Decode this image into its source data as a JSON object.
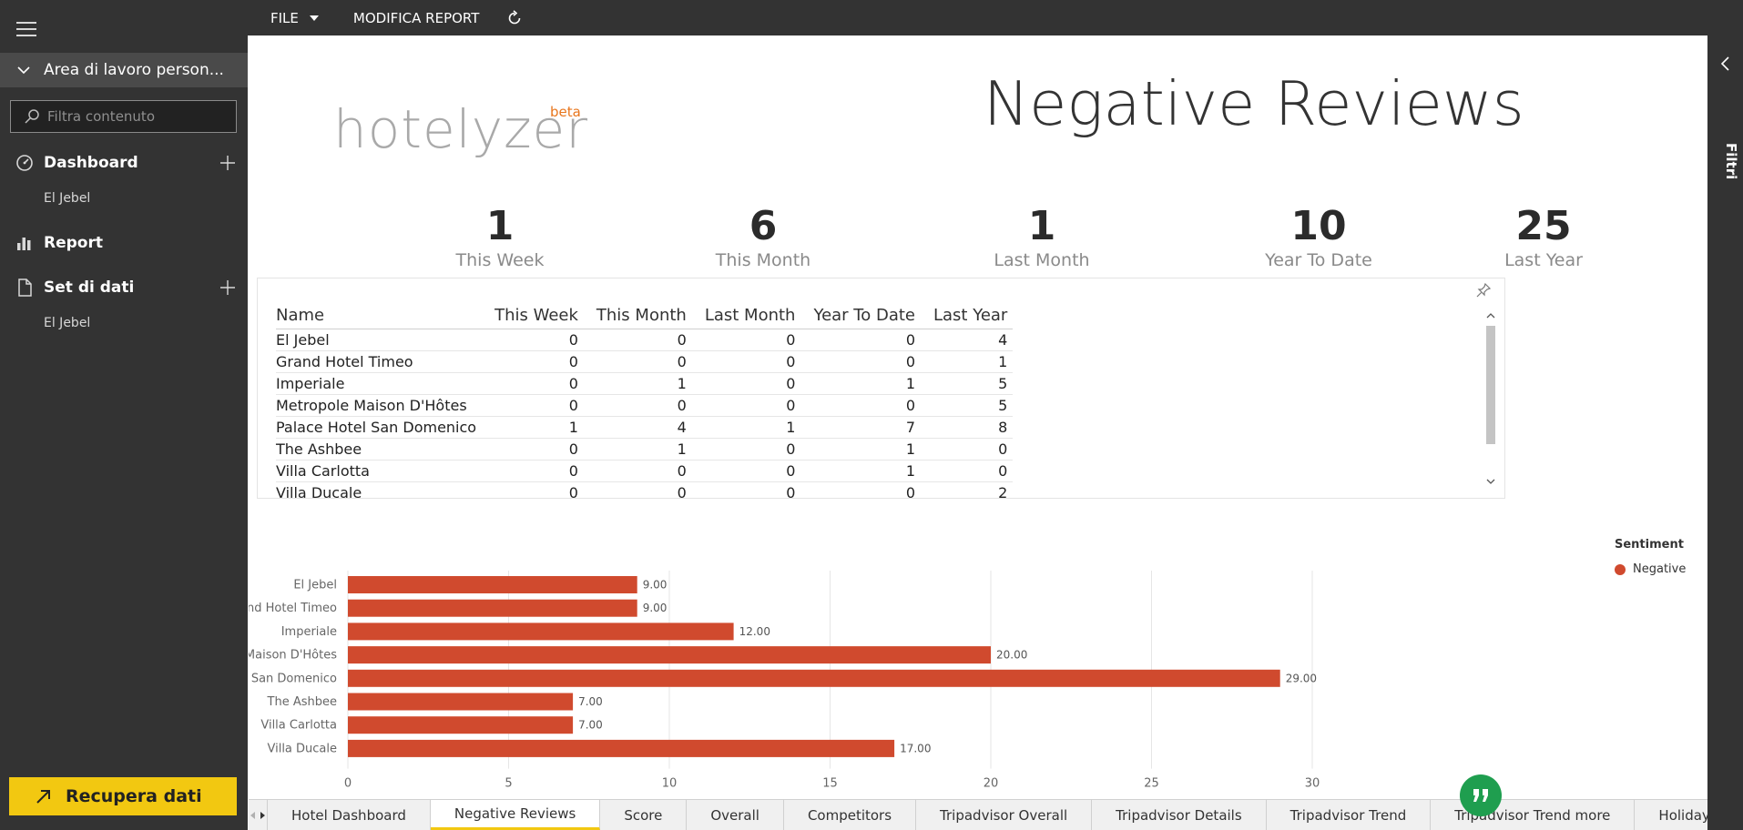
{
  "nav": {
    "workspace_label": "Area di lavoro person...",
    "filter_placeholder": "Filtra contenuto",
    "sections": [
      {
        "label": "Dashboard",
        "sub": "El Jebel"
      },
      {
        "label": "Report"
      },
      {
        "label": "Set di dati",
        "sub": "El Jebel"
      }
    ],
    "get_data_label": "Recupera dati"
  },
  "toolbar": {
    "file_label": "FILE",
    "edit_label": "MODIFICA REPORT"
  },
  "filters_pane": {
    "label": "Filtri"
  },
  "report": {
    "logo_text": "hotelyzer",
    "logo_beta": "beta",
    "title": "Negative Reviews",
    "kpis": [
      {
        "value": "1",
        "label": "This Week"
      },
      {
        "value": "6",
        "label": "This Month"
      },
      {
        "value": "1",
        "label": "Last Month"
      },
      {
        "value": "10",
        "label": "Year To Date"
      },
      {
        "value": "25",
        "label": "Last Year"
      }
    ],
    "table": {
      "headers": [
        "Name",
        "This Week",
        "This Month",
        "Last Month",
        "Year To Date",
        "Last Year"
      ],
      "rows": [
        [
          "El Jebel",
          "0",
          "0",
          "0",
          "0",
          "4"
        ],
        [
          "Grand Hotel Timeo",
          "0",
          "0",
          "0",
          "0",
          "1"
        ],
        [
          "Imperiale",
          "0",
          "1",
          "0",
          "1",
          "5"
        ],
        [
          "Metropole Maison D'Hôtes",
          "0",
          "0",
          "0",
          "0",
          "5"
        ],
        [
          "Palace Hotel San Domenico",
          "1",
          "4",
          "1",
          "7",
          "8"
        ],
        [
          "The Ashbee",
          "0",
          "1",
          "0",
          "1",
          "0"
        ],
        [
          "Villa Carlotta",
          "0",
          "0",
          "0",
          "1",
          "0"
        ],
        [
          "Villa Ducale",
          "0",
          "0",
          "0",
          "0",
          "2"
        ]
      ]
    }
  },
  "chart_data": {
    "type": "bar",
    "orientation": "horizontal",
    "categories": [
      "El Jebel",
      "Grand Hotel Timeo",
      "Imperiale",
      "Metropole Maison D'Hôtes",
      "Palace Hotel San Domenico",
      "The Ashbee",
      "Villa Carlotta",
      "Villa Ducale"
    ],
    "series": [
      {
        "name": "Negative",
        "values": [
          9,
          9,
          12,
          20,
          29,
          7,
          7,
          17
        ],
        "color": "#d04a2e"
      }
    ],
    "data_labels": [
      "9.00",
      "9.00",
      "12.00",
      "20.00",
      "29.00",
      "7.00",
      "7.00",
      "17.00"
    ],
    "xlim": [
      0,
      30
    ],
    "xticks": [
      0,
      5,
      10,
      15,
      20,
      25,
      30
    ],
    "grid": true,
    "legend_title": "Sentiment",
    "legend_position": "right"
  },
  "tabs": [
    {
      "label": "Hotel Dashboard"
    },
    {
      "label": "Negative Reviews",
      "active": true
    },
    {
      "label": "Score"
    },
    {
      "label": "Overall"
    },
    {
      "label": "Competitors"
    },
    {
      "label": "Tripadvisor Overall"
    },
    {
      "label": "Tripadvisor Details"
    },
    {
      "label": "Tripadvisor Trend"
    },
    {
      "label": "Tripadvisor Trend more"
    },
    {
      "label": "HolidayCheck Overall"
    }
  ],
  "colors": {
    "nav_bg": "#333333",
    "accent_yellow": "#f2c811",
    "bar": "#d04a2e",
    "logo_orange": "#e8761d",
    "feedback_green": "#1f9e4f"
  },
  "icons": [
    "hamburger-icon",
    "chevron-down-icon",
    "search-icon",
    "dashboard-icon",
    "plus-icon",
    "report-icon",
    "dataset-icon",
    "arrow-up-right-icon",
    "caret-down-icon",
    "refresh-icon",
    "chevron-left-icon",
    "pin-icon",
    "chevron-up-icon",
    "quote-icon"
  ]
}
